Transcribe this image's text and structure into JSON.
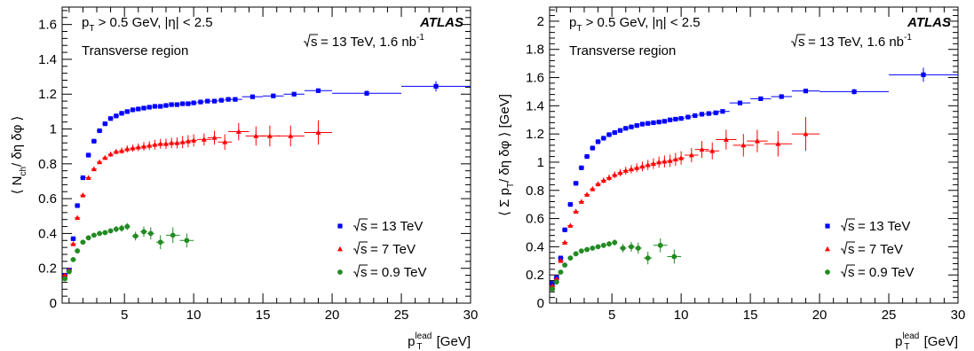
{
  "chart_data": [
    {
      "type": "scatter",
      "title": "",
      "xlabel": {
        "base": "p",
        "sub": "T",
        "sup": "lead",
        "unit": "[GeV]"
      },
      "ylabel": "⟨ N_ch / δη δφ ⟩",
      "xlim": [
        0.5,
        30
      ],
      "ylim": [
        0,
        1.7
      ],
      "xticks": [
        5,
        10,
        15,
        20,
        25,
        30
      ],
      "yticks": [
        0,
        0.2,
        0.4,
        0.6,
        0.8,
        1,
        1.2,
        1.4,
        1.6
      ],
      "yticks_text": [
        "0",
        "0.2",
        "0.4",
        "0.6",
        "0.8",
        "1",
        "1.2",
        "1.4",
        "1.6"
      ],
      "annotations": {
        "cuts_pt": "> 0.5 GeV, |η| < 2.5",
        "region": "Transverse region",
        "experiment": "ATLAS",
        "energy_label": "= 13 TeV, 1.6 nb",
        "lumi_sup": "-1"
      },
      "series": [
        {
          "name": "= 13 TeV",
          "color": "#0000ff",
          "marker": "square",
          "x": [
            0.7,
            1.0,
            1.3,
            1.6,
            2.0,
            2.4,
            2.8,
            3.2,
            3.6,
            4.0,
            4.4,
            4.8,
            5.2,
            5.6,
            6.0,
            6.4,
            6.8,
            7.2,
            7.6,
            8.0,
            8.4,
            8.8,
            9.2,
            9.6,
            10.0,
            10.5,
            11.0,
            11.5,
            12.0,
            12.5,
            13.0,
            14.25,
            15.75,
            17.25,
            19.0,
            22.5,
            27.5
          ],
          "y": [
            0.16,
            0.19,
            0.37,
            0.56,
            0.72,
            0.85,
            0.93,
            0.99,
            1.03,
            1.06,
            1.075,
            1.09,
            1.1,
            1.11,
            1.115,
            1.12,
            1.125,
            1.13,
            1.13,
            1.135,
            1.14,
            1.14,
            1.145,
            1.145,
            1.15,
            1.155,
            1.16,
            1.16,
            1.165,
            1.17,
            1.17,
            1.185,
            1.19,
            1.2,
            1.22,
            1.205,
            1.245
          ],
          "xerr": [
            0.2,
            0.2,
            0.2,
            0.2,
            0.2,
            0.2,
            0.2,
            0.2,
            0.2,
            0.2,
            0.2,
            0.2,
            0.2,
            0.2,
            0.2,
            0.2,
            0.2,
            0.2,
            0.2,
            0.2,
            0.2,
            0.2,
            0.2,
            0.2,
            0.25,
            0.25,
            0.25,
            0.25,
            0.25,
            0.25,
            0.5,
            0.75,
            0.75,
            0.75,
            1.0,
            2.5,
            2.5
          ],
          "yerr": [
            0,
            0,
            0,
            0,
            0,
            0,
            0,
            0,
            0,
            0,
            0,
            0,
            0,
            0,
            0,
            0,
            0,
            0,
            0,
            0,
            0,
            0,
            0,
            0,
            0,
            0,
            0,
            0,
            0,
            0,
            0,
            0.005,
            0.008,
            0.01,
            0.012,
            0.015,
            0.03
          ]
        },
        {
          "name": "= 7 TeV",
          "color": "#ff0000",
          "marker": "triangle",
          "x": [
            0.7,
            1.0,
            1.3,
            1.6,
            2.0,
            2.4,
            2.8,
            3.2,
            3.6,
            4.0,
            4.4,
            4.8,
            5.2,
            5.6,
            6.0,
            6.4,
            6.8,
            7.2,
            7.6,
            8.0,
            8.4,
            8.8,
            9.2,
            9.6,
            10.0,
            10.75,
            11.5,
            12.25,
            13.25,
            14.5,
            15.5,
            17.0,
            19.0
          ],
          "y": [
            0.16,
            0.19,
            0.34,
            0.49,
            0.62,
            0.72,
            0.77,
            0.81,
            0.835,
            0.855,
            0.87,
            0.875,
            0.885,
            0.89,
            0.895,
            0.9,
            0.905,
            0.91,
            0.915,
            0.915,
            0.92,
            0.92,
            0.925,
            0.93,
            0.935,
            0.94,
            0.95,
            0.925,
            0.985,
            0.96,
            0.96,
            0.96,
            0.98
          ],
          "xerr": [
            0.2,
            0.2,
            0.2,
            0.2,
            0.2,
            0.2,
            0.2,
            0.2,
            0.2,
            0.2,
            0.2,
            0.2,
            0.2,
            0.2,
            0.2,
            0.2,
            0.2,
            0.2,
            0.2,
            0.2,
            0.2,
            0.2,
            0.2,
            0.2,
            0.25,
            0.5,
            0.5,
            0.5,
            0.75,
            0.75,
            0.75,
            1.0,
            1.0
          ],
          "yerr": [
            0,
            0,
            0,
            0,
            0,
            0.01,
            0.01,
            0.01,
            0.012,
            0.015,
            0.015,
            0.018,
            0.02,
            0.02,
            0.022,
            0.025,
            0.025,
            0.028,
            0.028,
            0.03,
            0.03,
            0.032,
            0.035,
            0.035,
            0.035,
            0.035,
            0.04,
            0.045,
            0.05,
            0.055,
            0.06,
            0.06,
            0.07
          ]
        },
        {
          "name": "= 0.9 TeV",
          "color": "#228b22",
          "marker": "circle",
          "x": [
            0.7,
            1.0,
            1.3,
            1.6,
            2.0,
            2.4,
            2.8,
            3.2,
            3.6,
            4.0,
            4.4,
            4.8,
            5.2,
            5.8,
            6.4,
            6.9,
            7.6,
            8.5,
            9.5
          ],
          "y": [
            0.14,
            0.18,
            0.25,
            0.3,
            0.35,
            0.375,
            0.39,
            0.4,
            0.405,
            0.415,
            0.425,
            0.43,
            0.44,
            0.385,
            0.41,
            0.4,
            0.35,
            0.39,
            0.36
          ],
          "xerr": [
            0.2,
            0.2,
            0.2,
            0.2,
            0.2,
            0.2,
            0.2,
            0.2,
            0.2,
            0.2,
            0.2,
            0.2,
            0.2,
            0.25,
            0.25,
            0.25,
            0.3,
            0.5,
            0.5
          ],
          "yerr": [
            0,
            0,
            0,
            0,
            0.005,
            0.008,
            0.01,
            0.01,
            0.012,
            0.015,
            0.018,
            0.02,
            0.02,
            0.025,
            0.03,
            0.035,
            0.04,
            0.045,
            0.04
          ]
        }
      ]
    },
    {
      "type": "scatter",
      "title": "",
      "xlabel": {
        "base": "p",
        "sub": "T",
        "sup": "lead",
        "unit": "[GeV]"
      },
      "ylabel": "⟨ Σ p_T / δη δφ ⟩ [GeV]",
      "xlim": [
        0.5,
        30
      ],
      "ylim": [
        0,
        2.1
      ],
      "xticks": [
        5,
        10,
        15,
        20,
        25,
        30
      ],
      "yticks": [
        0,
        0.2,
        0.4,
        0.6,
        0.8,
        1,
        1.2,
        1.4,
        1.6,
        1.8,
        2
      ],
      "yticks_text": [
        "0",
        "0.2",
        "0.4",
        "0.6",
        "0.8",
        "1",
        "1.2",
        "1.4",
        "1.6",
        "1.8",
        "2"
      ],
      "annotations": {
        "cuts_pt": "> 0.5 GeV, |η| < 2.5",
        "region": "Transverse region",
        "experiment": "ATLAS",
        "energy_label": "= 13 TeV, 1.6 nb",
        "lumi_sup": "-1"
      },
      "series": [
        {
          "name": "= 13 TeV",
          "color": "#0000ff",
          "marker": "square",
          "x": [
            0.7,
            1.0,
            1.3,
            1.6,
            2.0,
            2.4,
            2.8,
            3.2,
            3.6,
            4.0,
            4.4,
            4.8,
            5.2,
            5.6,
            6.0,
            6.4,
            6.8,
            7.2,
            7.6,
            8.0,
            8.4,
            8.8,
            9.2,
            9.6,
            10.0,
            10.5,
            11.0,
            11.5,
            12.0,
            12.5,
            13.0,
            14.25,
            15.75,
            17.25,
            19.0,
            22.5,
            27.5
          ],
          "y": [
            0.14,
            0.18,
            0.32,
            0.52,
            0.7,
            0.85,
            0.96,
            1.04,
            1.1,
            1.145,
            1.17,
            1.195,
            1.21,
            1.225,
            1.24,
            1.25,
            1.26,
            1.27,
            1.275,
            1.28,
            1.285,
            1.29,
            1.3,
            1.305,
            1.31,
            1.32,
            1.33,
            1.34,
            1.345,
            1.35,
            1.36,
            1.42,
            1.45,
            1.465,
            1.505,
            1.5,
            1.62
          ],
          "xerr": [
            0.2,
            0.2,
            0.2,
            0.2,
            0.2,
            0.2,
            0.2,
            0.2,
            0.2,
            0.2,
            0.2,
            0.2,
            0.2,
            0.2,
            0.2,
            0.2,
            0.2,
            0.2,
            0.2,
            0.2,
            0.2,
            0.2,
            0.2,
            0.2,
            0.25,
            0.25,
            0.25,
            0.25,
            0.25,
            0.25,
            0.5,
            0.75,
            0.75,
            0.75,
            1.0,
            2.5,
            2.5
          ],
          "yerr": [
            0,
            0,
            0,
            0,
            0,
            0,
            0,
            0,
            0,
            0,
            0,
            0,
            0,
            0,
            0,
            0,
            0,
            0,
            0,
            0,
            0,
            0,
            0,
            0,
            0,
            0,
            0,
            0,
            0,
            0,
            0,
            0.008,
            0.01,
            0.012,
            0.015,
            0.02,
            0.05
          ]
        },
        {
          "name": "= 7 TeV",
          "color": "#ff0000",
          "marker": "triangle",
          "x": [
            0.7,
            1.0,
            1.3,
            1.6,
            2.0,
            2.4,
            2.8,
            3.2,
            3.6,
            4.0,
            4.4,
            4.8,
            5.2,
            5.6,
            6.0,
            6.4,
            6.8,
            7.2,
            7.6,
            8.0,
            8.4,
            8.8,
            9.2,
            9.6,
            10.0,
            10.75,
            11.5,
            12.25,
            13.25,
            14.5,
            15.5,
            17.0,
            19.0
          ],
          "y": [
            0.12,
            0.17,
            0.3,
            0.43,
            0.55,
            0.65,
            0.72,
            0.77,
            0.81,
            0.845,
            0.87,
            0.89,
            0.91,
            0.925,
            0.94,
            0.95,
            0.96,
            0.97,
            0.98,
            0.99,
            1.0,
            1.005,
            1.01,
            1.02,
            1.03,
            1.05,
            1.09,
            1.08,
            1.16,
            1.12,
            1.15,
            1.13,
            1.2
          ],
          "xerr": [
            0.2,
            0.2,
            0.2,
            0.2,
            0.2,
            0.2,
            0.2,
            0.2,
            0.2,
            0.2,
            0.2,
            0.2,
            0.2,
            0.2,
            0.2,
            0.2,
            0.2,
            0.2,
            0.2,
            0.2,
            0.2,
            0.2,
            0.2,
            0.2,
            0.25,
            0.5,
            0.5,
            0.5,
            0.75,
            0.75,
            0.75,
            1.0,
            1.0
          ],
          "yerr": [
            0,
            0,
            0,
            0,
            0,
            0.01,
            0.012,
            0.014,
            0.016,
            0.018,
            0.02,
            0.022,
            0.024,
            0.026,
            0.028,
            0.03,
            0.032,
            0.034,
            0.036,
            0.038,
            0.04,
            0.042,
            0.044,
            0.046,
            0.048,
            0.05,
            0.06,
            0.06,
            0.07,
            0.08,
            0.08,
            0.09,
            0.12
          ]
        },
        {
          "name": "= 0.9 TeV",
          "color": "#228b22",
          "marker": "circle",
          "x": [
            0.7,
            1.0,
            1.3,
            1.6,
            2.0,
            2.4,
            2.8,
            3.2,
            3.6,
            4.0,
            4.4,
            4.8,
            5.2,
            5.8,
            6.4,
            6.9,
            7.6,
            8.5,
            9.5
          ],
          "y": [
            0.1,
            0.15,
            0.22,
            0.27,
            0.32,
            0.35,
            0.37,
            0.38,
            0.39,
            0.4,
            0.41,
            0.42,
            0.43,
            0.39,
            0.4,
            0.39,
            0.32,
            0.41,
            0.33
          ],
          "xerr": [
            0.2,
            0.2,
            0.2,
            0.2,
            0.2,
            0.2,
            0.2,
            0.2,
            0.2,
            0.2,
            0.2,
            0.2,
            0.2,
            0.25,
            0.25,
            0.25,
            0.3,
            0.5,
            0.5
          ],
          "yerr": [
            0,
            0,
            0,
            0,
            0.005,
            0.008,
            0.01,
            0.012,
            0.014,
            0.016,
            0.018,
            0.02,
            0.022,
            0.03,
            0.035,
            0.04,
            0.045,
            0.05,
            0.05
          ]
        }
      ]
    }
  ]
}
